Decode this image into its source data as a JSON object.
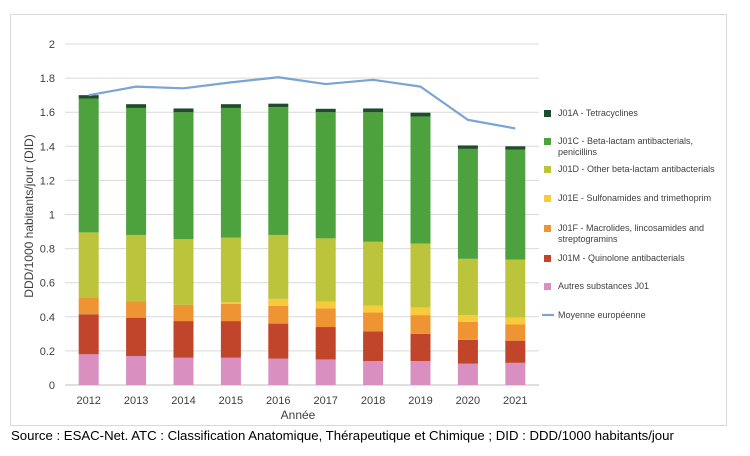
{
  "chart_data": {
    "type": "bar",
    "stacked": true,
    "categories": [
      "2012",
      "2013",
      "2014",
      "2015",
      "2016",
      "2017",
      "2018",
      "2019",
      "2020",
      "2021"
    ],
    "title": "",
    "xlabel": "Année",
    "ylabel": "DDD/1000 habitants/jour (DID)",
    "ylim": [
      0,
      2
    ],
    "yticks": [
      "0",
      "0.2",
      "0.4",
      "0.6",
      "0.8",
      "1",
      "1.2",
      "1.4",
      "1.6",
      "1.8",
      "2"
    ],
    "grid": true,
    "legend_position": "right",
    "series": [
      {
        "name": "Autres substances J01",
        "color": "#d98fc0",
        "values": [
          0.18,
          0.17,
          0.16,
          0.16,
          0.155,
          0.15,
          0.14,
          0.14,
          0.125,
          0.13
        ]
      },
      {
        "name": "J01M - Quinolone antibacterials",
        "color": "#c0452a",
        "values": [
          0.235,
          0.225,
          0.215,
          0.215,
          0.205,
          0.19,
          0.175,
          0.16,
          0.14,
          0.13
        ]
      },
      {
        "name": "J01F - Macrolides, lincosamides and streptogramins",
        "color": "#ef9433",
        "values": [
          0.1,
          0.095,
          0.095,
          0.1,
          0.105,
          0.11,
          0.11,
          0.11,
          0.105,
          0.095
        ]
      },
      {
        "name": "J01E - Sulfonamides and trimethoprim",
        "color": "#f7cb3c",
        "values": [
          0.0,
          0.0,
          0.0,
          0.01,
          0.04,
          0.04,
          0.04,
          0.045,
          0.04,
          0.04
        ]
      },
      {
        "name": "J01D - Other beta-lactam antibacterials",
        "color": "#bcc43b",
        "values": [
          0.38,
          0.39,
          0.385,
          0.38,
          0.375,
          0.37,
          0.375,
          0.375,
          0.33,
          0.34
        ]
      },
      {
        "name": "J01C - Beta-lactam antibacterials, penicillins",
        "color": "#4ea23e",
        "values": [
          0.785,
          0.745,
          0.745,
          0.76,
          0.75,
          0.74,
          0.76,
          0.745,
          0.645,
          0.645
        ]
      },
      {
        "name": "J01A - Tetracyclines",
        "color": "#1e4d2b",
        "values": [
          0.02,
          0.022,
          0.022,
          0.022,
          0.02,
          0.02,
          0.022,
          0.022,
          0.02,
          0.02
        ]
      }
    ],
    "line_series": {
      "name": "Moyenne européenne",
      "color": "#7aa3d6",
      "values": [
        1.7,
        1.75,
        1.74,
        1.775,
        1.805,
        1.765,
        1.79,
        1.75,
        1.555,
        1.505
      ]
    },
    "legend_order": [
      {
        "text": [
          "J01A - Tetracyclines"
        ],
        "color": "#1e4d2b",
        "kind": "box"
      },
      {
        "text": [
          "J01C - Beta-lactam antibacterials,",
          "penicillins"
        ],
        "color": "#4ea23e",
        "kind": "box"
      },
      {
        "text": [
          "J01D - Other beta-lactam antibacterials"
        ],
        "color": "#bcc43b",
        "kind": "box"
      },
      {
        "text": [
          "J01E - Sulfonamides and trimethoprim"
        ],
        "color": "#f7cb3c",
        "kind": "box"
      },
      {
        "text": [
          "J01F - Macrolides, lincosamides and",
          "streptogramins"
        ],
        "color": "#ef9433",
        "kind": "box"
      },
      {
        "text": [
          "J01M - Quinolone antibacterials"
        ],
        "color": "#c0452a",
        "kind": "box"
      },
      {
        "text": [
          "Autres substances J01"
        ],
        "color": "#d98fc0",
        "kind": "box"
      },
      {
        "text": [
          "Moyenne européenne"
        ],
        "color": "#7aa3d6",
        "kind": "line"
      }
    ]
  },
  "source_note": "Source : ESAC-Net. ATC : Classification Anatomique, Thérapeutique et Chimique ; DID : DDD/1000 habitants/jour"
}
